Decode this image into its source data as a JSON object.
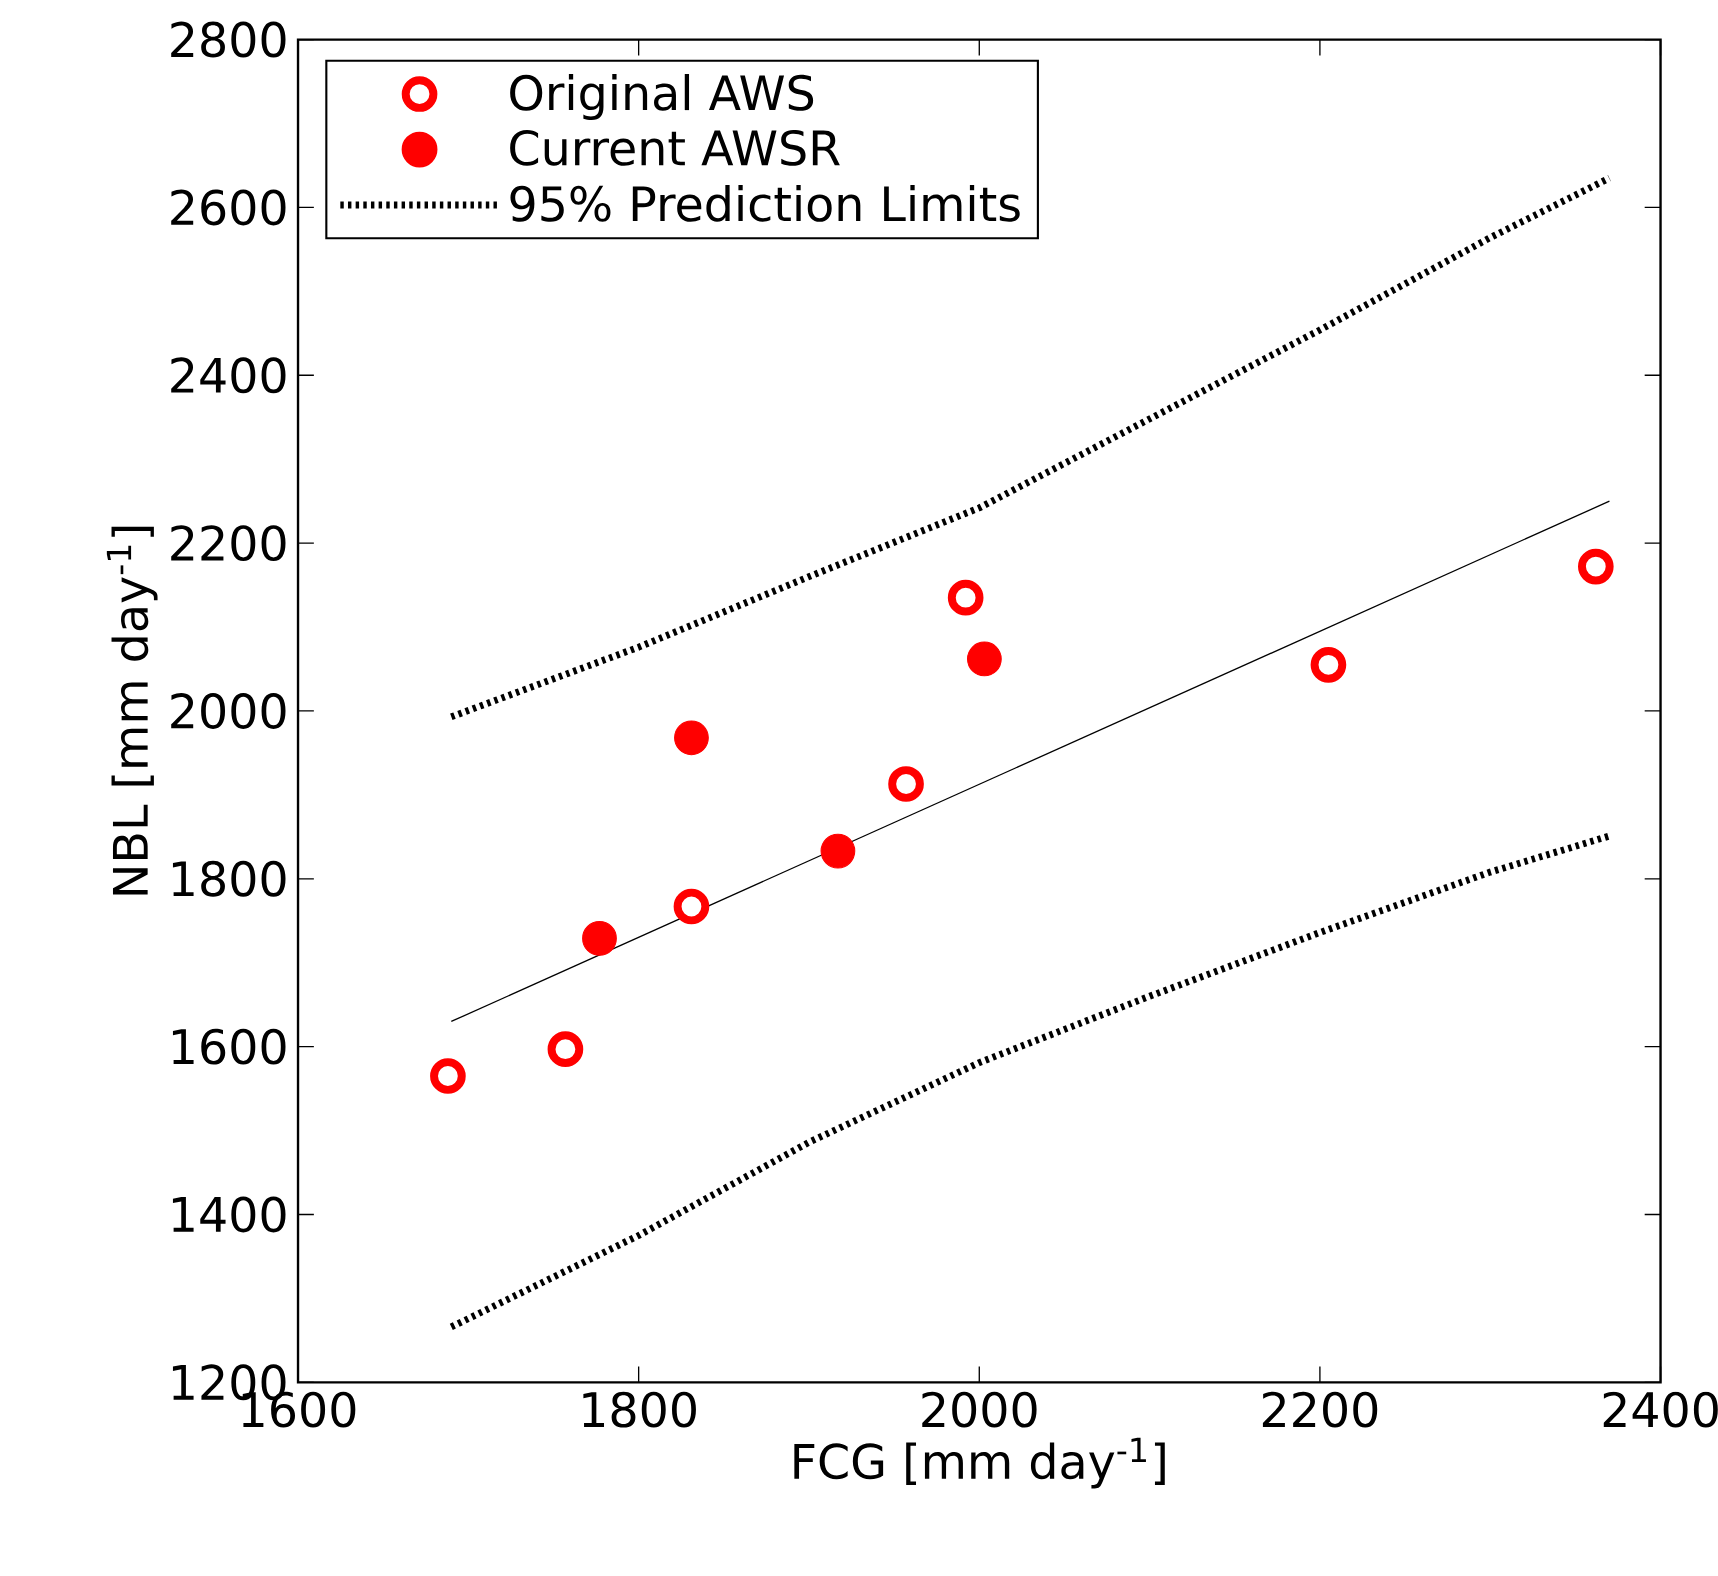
{
  "chart_data": {
    "type": "scatter",
    "xlabel": "FCG [mm day$^{-1}$]",
    "ylabel": "NBL [mm day$^{-1}$]",
    "xlim": [
      1600,
      2400
    ],
    "xticks": [
      1600,
      1800,
      2000,
      2200,
      2400
    ],
    "ylim": [
      1200,
      2800
    ],
    "yticks": [
      1200,
      1400,
      1600,
      1800,
      2000,
      2200,
      2400,
      2600,
      2800
    ],
    "grid": false,
    "legend": "top left",
    "series": [
      {
        "name": "Original AWS",
        "marker": "circle",
        "color": "#ff0000",
        "x": [
          1688,
          1757,
          1831,
          1957,
          1992,
          2205,
          2362
        ],
        "values": [
          1565,
          1597,
          1767,
          1913,
          2135,
          2055,
          2172
        ]
      },
      {
        "name": "Current AWSR",
        "marker": "circle",
        "color": "#ff0000",
        "x": [
          1777,
          1831,
          1917,
          2003
        ],
        "values": [
          1729,
          1968,
          1833,
          2062
        ]
      },
      {
        "name": "95% Prediction Limits",
        "type": "line",
        "line_style": "dotted",
        "marker": "none",
        "color": "#000000",
        "x": [
          1690,
          1800,
          1900,
          2000,
          2100,
          2200,
          2300,
          2370
        ],
        "values": [
          1993,
          2076,
          2160,
          2242,
          2348,
          2454,
          2564,
          2635
        ]
      },
      {
        "type": "line",
        "line_style": "dotted",
        "marker": "none",
        "color": "#000000",
        "x": [
          1690,
          1800,
          1900,
          2000,
          2100,
          2200,
          2300,
          2370
        ],
        "values": [
          1266,
          1375,
          1486,
          1581,
          1660,
          1736,
          1808,
          1851
        ]
      },
      {
        "type": "line",
        "line_style": "solid",
        "marker": "none",
        "color": "#000000",
        "x": [
          1690,
          2370
        ],
        "values": [
          1630,
          2250
        ]
      }
    ]
  }
}
